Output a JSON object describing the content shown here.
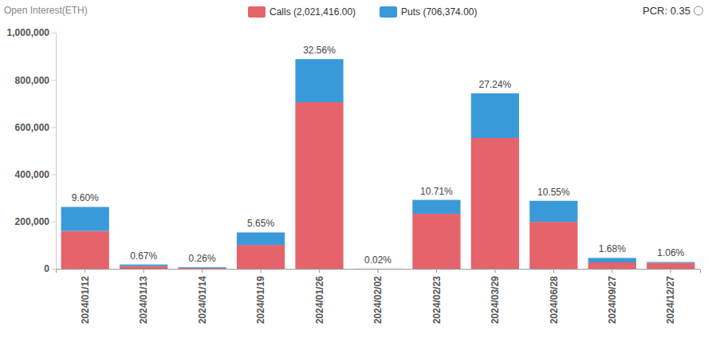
{
  "chart_data": {
    "type": "bar",
    "title": "Open Interest(ETH)",
    "categories": [
      "2024/01/12",
      "2024/01/13",
      "2024/01/14",
      "2024/01/19",
      "2024/01/26",
      "2024/02/02",
      "2024/02/23",
      "2024/03/29",
      "2024/06/28",
      "2024/09/27",
      "2024/12/27"
    ],
    "series": [
      {
        "name": "Calls (2,021,416.00)",
        "color": "#e5636a",
        "values": [
          160000,
          11000,
          4000,
          101000,
          706000,
          400,
          233000,
          554000,
          199000,
          27000,
          25000
        ]
      },
      {
        "name": "Puts (706,374.00)",
        "color": "#3a9ad9",
        "values": [
          102000,
          7300,
          3100,
          53000,
          182000,
          145,
          59000,
          189000,
          89000,
          19000,
          4000
        ]
      }
    ],
    "share_labels": [
      "9.60%",
      "0.67%",
      "0.26%",
      "5.65%",
      "32.56%",
      "0.02%",
      "10.71%",
      "27.24%",
      "10.55%",
      "1.68%",
      "1.06%"
    ],
    "annotations": [
      "PCR: 0.35"
    ],
    "ylim": [
      0,
      1000000
    ],
    "yticks": [
      0,
      {
        "value": 200000,
        "label": "200,000"
      },
      {
        "value": 400000,
        "label": "400,000"
      },
      {
        "value": 600000,
        "label": "600,000"
      },
      {
        "value": 800000,
        "label": "800,000"
      },
      {
        "value": 1000000,
        "label": "1,000,000"
      }
    ],
    "stacked": true,
    "grid": false,
    "legend": "top"
  }
}
